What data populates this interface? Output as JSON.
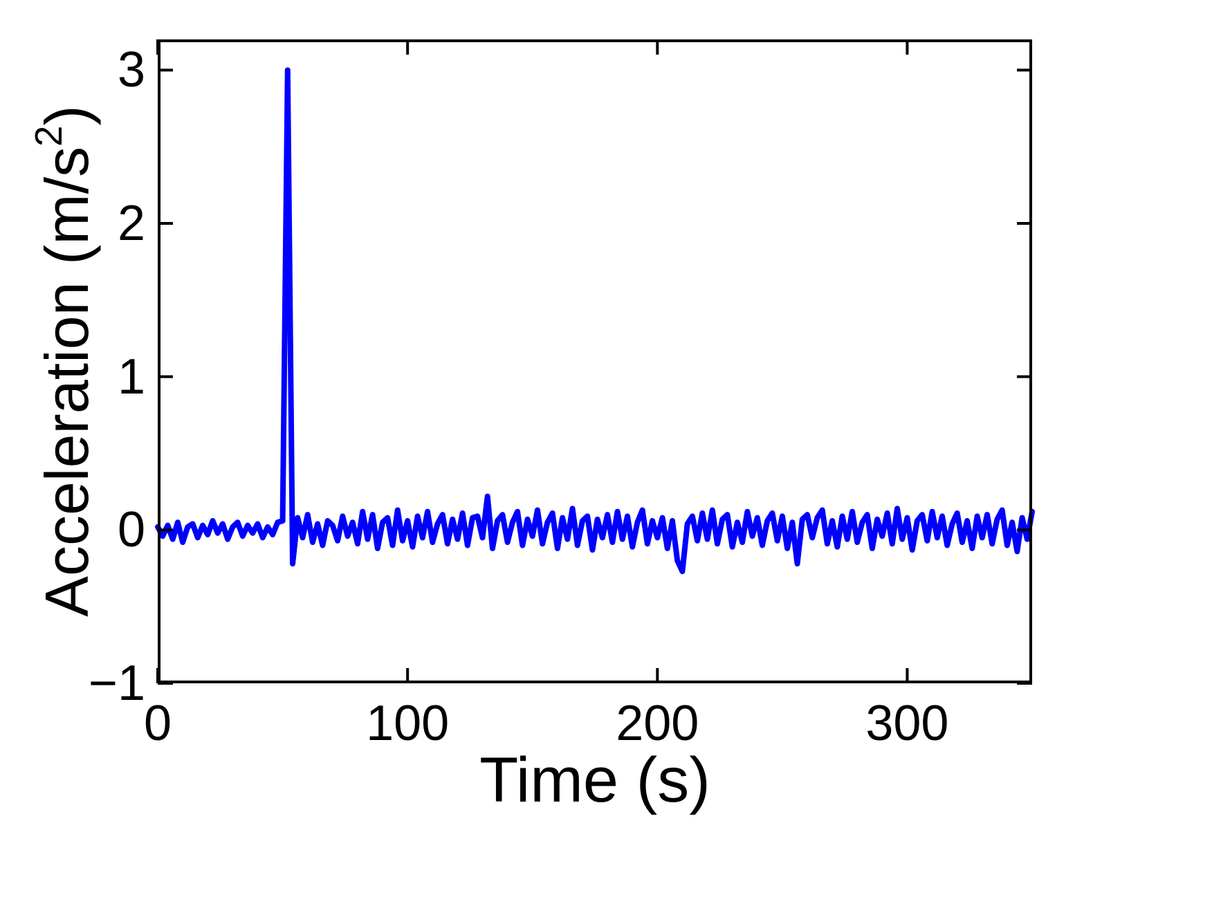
{
  "labels": {
    "xlabel": "Time (s)",
    "ylabel_pre": "Acceleration (m/s",
    "ylabel_sup": "2",
    "ylabel_post": ")"
  },
  "chart_data": {
    "type": "line",
    "title": "",
    "xlabel": "Time (s)",
    "ylabel": "Acceleration (m/s^2)",
    "xlim": [
      0,
      350
    ],
    "ylim": [
      -1,
      3.2
    ],
    "xticks": [
      0,
      100,
      200,
      300
    ],
    "yticks": [
      -1,
      0,
      1,
      2,
      3
    ],
    "grid": false,
    "legend": "none",
    "line_color": "#0000ff",
    "line_width": 8,
    "axis_color": "#000000",
    "tick_length": 22,
    "peak": {
      "x": 52,
      "y": 3.0
    },
    "x_start": 0,
    "x_step": 2,
    "y": [
      0.02,
      -0.04,
      0.03,
      -0.06,
      0.05,
      -0.08,
      0.02,
      0.04,
      -0.05,
      0.03,
      -0.03,
      0.06,
      -0.02,
      0.04,
      -0.06,
      0.02,
      0.05,
      -0.04,
      0.03,
      -0.02,
      0.04,
      -0.05,
      0.02,
      -0.03,
      0.05,
      0.06,
      3.0,
      -0.22,
      0.08,
      -0.05,
      0.1,
      -0.08,
      0.04,
      -0.1,
      0.06,
      0.03,
      -0.07,
      0.09,
      -0.04,
      0.05,
      -0.09,
      0.12,
      -0.06,
      0.1,
      -0.12,
      0.05,
      0.08,
      -0.1,
      0.13,
      -0.07,
      0.06,
      -0.11,
      0.09,
      -0.05,
      0.12,
      -0.08,
      0.04,
      0.1,
      -0.09,
      0.07,
      -0.06,
      0.11,
      -0.1,
      0.08,
      0.09,
      -0.05,
      0.22,
      -0.12,
      0.06,
      0.1,
      -0.08,
      0.05,
      0.12,
      -0.1,
      0.07,
      -0.04,
      0.13,
      -0.09,
      0.05,
      0.11,
      -0.12,
      0.08,
      -0.06,
      0.14,
      -0.1,
      0.06,
      0.09,
      -0.13,
      0.07,
      -0.05,
      0.1,
      -0.08,
      0.12,
      -0.06,
      0.09,
      -0.11,
      0.05,
      0.13,
      -0.09,
      0.06,
      -0.05,
      0.08,
      -0.12,
      0.06,
      -0.2,
      -0.27,
      0.04,
      0.09,
      -0.07,
      0.11,
      -0.06,
      0.13,
      -0.09,
      0.07,
      0.1,
      -0.11,
      0.05,
      -0.08,
      0.12,
      -0.04,
      0.08,
      -0.1,
      0.06,
      0.11,
      -0.07,
      0.09,
      -0.12,
      0.05,
      -0.22,
      0.07,
      0.1,
      -0.05,
      0.08,
      0.13,
      -0.09,
      0.06,
      -0.11,
      0.09,
      -0.06,
      0.12,
      -0.08,
      0.05,
      0.1,
      -0.12,
      0.07,
      -0.04,
      0.11,
      -0.09,
      0.14,
      -0.06,
      0.08,
      -0.13,
      0.06,
      0.1,
      -0.07,
      0.12,
      -0.05,
      0.09,
      -0.1,
      0.04,
      0.11,
      -0.08,
      0.06,
      -0.12,
      0.09,
      -0.05,
      0.1,
      -0.09,
      0.07,
      0.13,
      -0.1,
      0.05,
      -0.14,
      0.08,
      -0.06,
      0.12
    ]
  }
}
